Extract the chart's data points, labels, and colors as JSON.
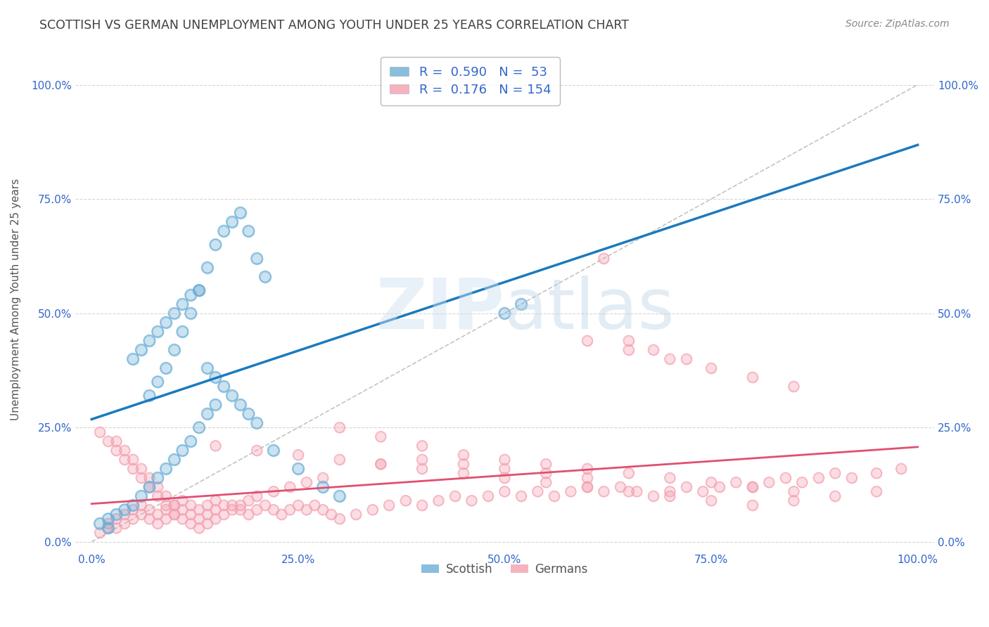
{
  "title": "SCOTTISH VS GERMAN UNEMPLOYMENT AMONG YOUTH UNDER 25 YEARS CORRELATION CHART",
  "source_text": "Source: ZipAtlas.com",
  "ylabel": "Unemployment Among Youth under 25 years",
  "xlim": [
    -0.02,
    1.02
  ],
  "ylim": [
    -0.02,
    1.08
  ],
  "x_ticks": [
    0.0,
    0.25,
    0.5,
    0.75,
    1.0
  ],
  "x_tick_labels": [
    "0.0%",
    "25.0%",
    "50.0%",
    "75.0%",
    "100.0%"
  ],
  "y_ticks": [
    0.0,
    0.25,
    0.5,
    0.75,
    1.0
  ],
  "y_tick_labels": [
    "0.0%",
    "25.0%",
    "50.0%",
    "75.0%",
    "100.0%"
  ],
  "scottish_color": "#6aaed6",
  "german_color": "#f4a0b0",
  "scottish_line_color": "#1a7abf",
  "german_line_color": "#e05070",
  "scottish_R": 0.59,
  "scottish_N": 53,
  "german_R": 0.176,
  "german_N": 154,
  "legend_labels": [
    "Scottish",
    "Germans"
  ],
  "grid_color": "#cccccc",
  "scottish_x": [
    0.01,
    0.02,
    0.03,
    0.04,
    0.05,
    0.06,
    0.07,
    0.08,
    0.09,
    0.1,
    0.11,
    0.12,
    0.13,
    0.14,
    0.15,
    0.07,
    0.08,
    0.09,
    0.1,
    0.11,
    0.12,
    0.13,
    0.14,
    0.15,
    0.16,
    0.17,
    0.18,
    0.19,
    0.2,
    0.21,
    0.05,
    0.06,
    0.07,
    0.08,
    0.09,
    0.1,
    0.11,
    0.12,
    0.13,
    0.14,
    0.15,
    0.16,
    0.17,
    0.18,
    0.19,
    0.2,
    0.22,
    0.25,
    0.28,
    0.3,
    0.5,
    0.52,
    0.02
  ],
  "scottish_y": [
    0.04,
    0.05,
    0.06,
    0.07,
    0.08,
    0.1,
    0.12,
    0.14,
    0.16,
    0.18,
    0.2,
    0.22,
    0.25,
    0.28,
    0.3,
    0.32,
    0.35,
    0.38,
    0.42,
    0.46,
    0.5,
    0.55,
    0.6,
    0.65,
    0.68,
    0.7,
    0.72,
    0.68,
    0.62,
    0.58,
    0.4,
    0.42,
    0.44,
    0.46,
    0.48,
    0.5,
    0.52,
    0.54,
    0.55,
    0.38,
    0.36,
    0.34,
    0.32,
    0.3,
    0.28,
    0.26,
    0.2,
    0.16,
    0.12,
    0.1,
    0.5,
    0.52,
    0.03
  ],
  "german_x": [
    0.01,
    0.02,
    0.02,
    0.03,
    0.03,
    0.04,
    0.04,
    0.05,
    0.05,
    0.06,
    0.06,
    0.07,
    0.07,
    0.08,
    0.08,
    0.09,
    0.09,
    0.1,
    0.1,
    0.11,
    0.11,
    0.12,
    0.12,
    0.13,
    0.13,
    0.14,
    0.14,
    0.15,
    0.15,
    0.16,
    0.17,
    0.18,
    0.19,
    0.2,
    0.21,
    0.22,
    0.23,
    0.24,
    0.25,
    0.26,
    0.27,
    0.28,
    0.29,
    0.3,
    0.32,
    0.34,
    0.36,
    0.38,
    0.4,
    0.42,
    0.44,
    0.46,
    0.48,
    0.5,
    0.52,
    0.54,
    0.56,
    0.58,
    0.6,
    0.62,
    0.64,
    0.66,
    0.68,
    0.7,
    0.72,
    0.74,
    0.76,
    0.78,
    0.8,
    0.82,
    0.84,
    0.86,
    0.88,
    0.9,
    0.92,
    0.95,
    0.98,
    0.03,
    0.04,
    0.05,
    0.06,
    0.07,
    0.08,
    0.09,
    0.1,
    0.15,
    0.2,
    0.25,
    0.3,
    0.35,
    0.4,
    0.45,
    0.5,
    0.55,
    0.6,
    0.65,
    0.7,
    0.75,
    0.8,
    0.85,
    0.9,
    0.95,
    0.3,
    0.35,
    0.4,
    0.45,
    0.5,
    0.55,
    0.6,
    0.65,
    0.7,
    0.75,
    0.8,
    0.85,
    0.6,
    0.65,
    0.7,
    0.75,
    0.8,
    0.85,
    0.01,
    0.02,
    0.03,
    0.04,
    0.05,
    0.06,
    0.07,
    0.08,
    0.09,
    0.1,
    0.11,
    0.12,
    0.13,
    0.14,
    0.15,
    0.16,
    0.17,
    0.18,
    0.19,
    0.2,
    0.22,
    0.24,
    0.26,
    0.28,
    0.35,
    0.4,
    0.45,
    0.5,
    0.55,
    0.6,
    0.62,
    0.65,
    0.68,
    0.72
  ],
  "german_y": [
    0.02,
    0.03,
    0.04,
    0.03,
    0.05,
    0.04,
    0.06,
    0.05,
    0.07,
    0.06,
    0.08,
    0.05,
    0.07,
    0.04,
    0.06,
    0.05,
    0.07,
    0.06,
    0.08,
    0.07,
    0.09,
    0.06,
    0.08,
    0.05,
    0.07,
    0.06,
    0.08,
    0.07,
    0.09,
    0.08,
    0.08,
    0.07,
    0.06,
    0.07,
    0.08,
    0.07,
    0.06,
    0.07,
    0.08,
    0.07,
    0.08,
    0.07,
    0.06,
    0.05,
    0.06,
    0.07,
    0.08,
    0.09,
    0.08,
    0.09,
    0.1,
    0.09,
    0.1,
    0.11,
    0.1,
    0.11,
    0.1,
    0.11,
    0.12,
    0.11,
    0.12,
    0.11,
    0.1,
    0.11,
    0.12,
    0.11,
    0.12,
    0.13,
    0.12,
    0.13,
    0.14,
    0.13,
    0.14,
    0.15,
    0.14,
    0.15,
    0.16,
    0.22,
    0.2,
    0.18,
    0.16,
    0.14,
    0.12,
    0.1,
    0.08,
    0.21,
    0.2,
    0.19,
    0.18,
    0.17,
    0.16,
    0.15,
    0.14,
    0.13,
    0.12,
    0.11,
    0.1,
    0.09,
    0.08,
    0.09,
    0.1,
    0.11,
    0.25,
    0.23,
    0.21,
    0.19,
    0.18,
    0.17,
    0.16,
    0.15,
    0.14,
    0.13,
    0.12,
    0.11,
    0.44,
    0.42,
    0.4,
    0.38,
    0.36,
    0.34,
    0.24,
    0.22,
    0.2,
    0.18,
    0.16,
    0.14,
    0.12,
    0.1,
    0.08,
    0.06,
    0.05,
    0.04,
    0.03,
    0.04,
    0.05,
    0.06,
    0.07,
    0.08,
    0.09,
    0.1,
    0.11,
    0.12,
    0.13,
    0.14,
    0.17,
    0.18,
    0.17,
    0.16,
    0.15,
    0.14,
    0.62,
    0.44,
    0.42,
    0.4
  ]
}
